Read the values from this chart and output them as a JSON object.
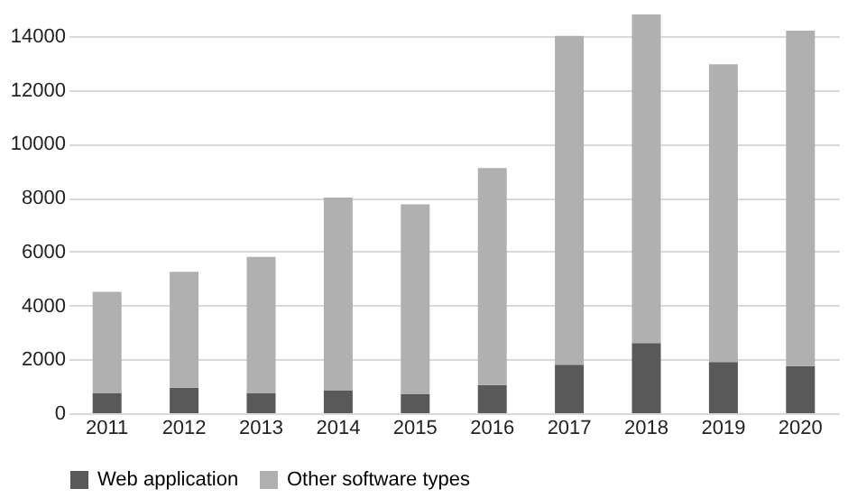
{
  "chart_data": {
    "type": "bar",
    "stacked": true,
    "categories": [
      "2011",
      "2012",
      "2013",
      "2014",
      "2015",
      "2016",
      "2017",
      "2018",
      "2019",
      "2020"
    ],
    "series": [
      {
        "name": "Web application",
        "color": "#595959",
        "values": [
          750,
          950,
          750,
          850,
          700,
          1050,
          1800,
          2600,
          1900,
          1750
        ]
      },
      {
        "name": "Other software types",
        "color": "#b0b0b0",
        "values": [
          3750,
          4300,
          5050,
          7150,
          7050,
          8050,
          12200,
          12200,
          11050,
          12450
        ]
      }
    ],
    "ylim": [
      0,
      15000
    ],
    "yticks": [
      0,
      2000,
      4000,
      6000,
      8000,
      10000,
      12000,
      14000
    ],
    "grid": "y",
    "legend": "bottom"
  }
}
